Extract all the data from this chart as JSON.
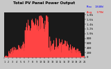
{
  "title": "Total PV Panel Power Output",
  "bg_color": "#c8c8c8",
  "plot_bg": "#1a1a1a",
  "grid_color": "#ffffff",
  "fill_color": "#cc0000",
  "line_color": "#ff4444",
  "legend_max_label": "Max",
  "legend_max_val": "1848W",
  "legend_avg_label": "Avg",
  "legend_avg_val": "179W",
  "legend_max_color": "#0000ff",
  "legend_avg_color": "#ff0000",
  "ylim": [
    0,
    1900
  ],
  "yticks": [
    0,
    200,
    400,
    600,
    800,
    1000,
    1200,
    1400,
    1600,
    1800
  ],
  "ytick_labels": [
    "0",
    "200",
    "400",
    "600",
    "800",
    "1.0k",
    "1.2k",
    "1.4k",
    "1.6k",
    "1.8k"
  ],
  "n_days": 200,
  "seed": 7
}
